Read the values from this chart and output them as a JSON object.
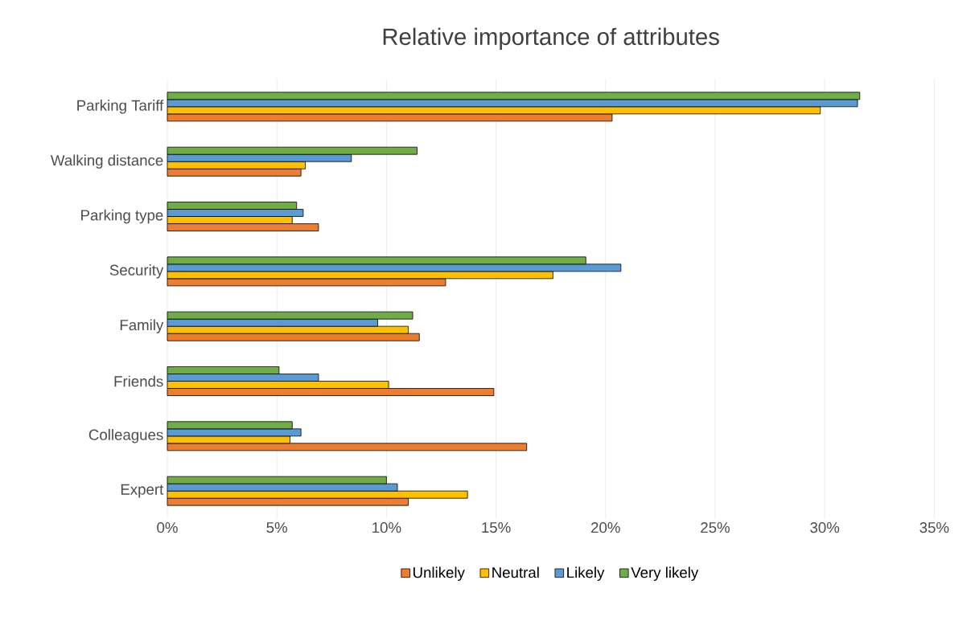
{
  "chart_data": {
    "type": "bar",
    "orientation": "horizontal",
    "title": "Relative importance of attributes",
    "categories": [
      "Parking Tariff",
      "Walking distance",
      "Parking type",
      "Security",
      "Family",
      "Friends",
      "Colleagues",
      "Expert"
    ],
    "series": [
      {
        "name": "Unlikely",
        "color": "#ed7d31",
        "values": [
          20.3,
          6.1,
          6.9,
          12.7,
          11.5,
          14.9,
          16.4,
          11.0
        ]
      },
      {
        "name": "Neutral",
        "color": "#ffc000",
        "values": [
          29.8,
          6.3,
          5.7,
          17.6,
          11.0,
          10.1,
          5.6,
          13.7
        ]
      },
      {
        "name": "Likely",
        "color": "#5b9bd5",
        "values": [
          31.5,
          8.4,
          6.2,
          20.7,
          9.6,
          6.9,
          6.1,
          10.5
        ]
      },
      {
        "name": "Very likely",
        "color": "#70ad47",
        "values": [
          31.6,
          11.4,
          5.9,
          19.1,
          11.2,
          5.1,
          5.7,
          10.0
        ]
      }
    ],
    "xlim": [
      0,
      35
    ],
    "xticks": [
      {
        "value": 0,
        "label": "0%"
      },
      {
        "value": 5,
        "label": "5%"
      },
      {
        "value": 10,
        "label": "10%"
      },
      {
        "value": 15,
        "label": "15%"
      },
      {
        "value": 20,
        "label": "20%"
      },
      {
        "value": 25,
        "label": "25%"
      },
      {
        "value": 30,
        "label": "30%"
      },
      {
        "value": 35,
        "label": "35%"
      }
    ],
    "grid": "x",
    "legend": "bottom"
  }
}
